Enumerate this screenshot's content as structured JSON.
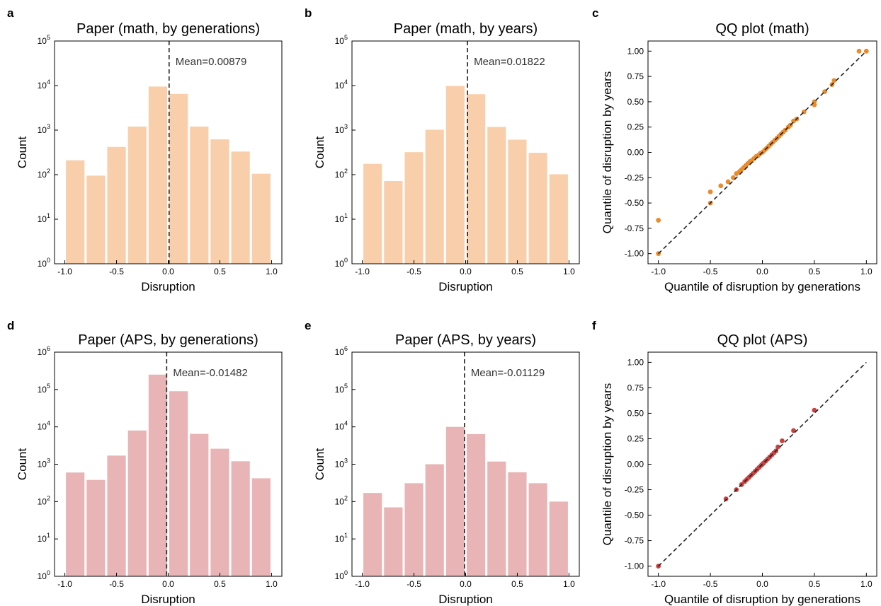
{
  "colors": {
    "hist_math": "#f8cfaa",
    "hist_aps": "#e8b4b5",
    "qq_math": "#ea8b2c",
    "qq_aps": "#c9403f",
    "mean_line": "#222222",
    "reference_line": "#222222"
  },
  "chart_data": [
    {
      "panel": "a",
      "type": "bar",
      "title": "Paper (math, by generations)",
      "xlabel": "Disruption",
      "ylabel": "Count",
      "yscale": "log",
      "xlim": [
        -1.1,
        1.1
      ],
      "ylim": [
        1,
        100000
      ],
      "xticks": [
        "-1.0",
        "-0.5",
        "0.0",
        "0.5",
        "1.0"
      ],
      "xtick_values": [
        -1.0,
        -0.5,
        0.0,
        0.5,
        1.0
      ],
      "ytick_exponents": [
        0,
        1,
        2,
        3,
        4,
        5
      ],
      "bin_edges": [
        -1.0,
        -0.8,
        -0.6,
        -0.4,
        -0.2,
        0.0,
        0.2,
        0.4,
        0.6,
        0.8,
        1.0
      ],
      "values": [
        210,
        95,
        420,
        1200,
        9500,
        6500,
        1200,
        620,
        330,
        105
      ],
      "mean": 0.00879,
      "mean_label": "Mean=0.00879",
      "grid": false
    },
    {
      "panel": "b",
      "type": "bar",
      "title": "Paper (math, by years)",
      "xlabel": "Disruption",
      "ylabel": "Count",
      "yscale": "log",
      "xlim": [
        -1.1,
        1.1
      ],
      "ylim": [
        1,
        100000
      ],
      "xticks": [
        "-1.0",
        "-0.5",
        "0.0",
        "0.5",
        "1.0"
      ],
      "xtick_values": [
        -1.0,
        -0.5,
        0.0,
        0.5,
        1.0
      ],
      "ytick_exponents": [
        0,
        1,
        2,
        3,
        4,
        5
      ],
      "bin_edges": [
        -1.0,
        -0.8,
        -0.6,
        -0.4,
        -0.2,
        0.0,
        0.2,
        0.4,
        0.6,
        0.8,
        1.0
      ],
      "values": [
        175,
        72,
        320,
        1020,
        9800,
        6400,
        1180,
        610,
        310,
        102
      ],
      "mean": 0.01822,
      "mean_label": "Mean=0.01822",
      "grid": false
    },
    {
      "panel": "c",
      "type": "scatter",
      "title": "QQ plot (math)",
      "xlabel": "Quantile of disruption by generations",
      "ylabel": "Quantile of disruption by years",
      "xlim": [
        -1.1,
        1.1
      ],
      "ylim": [
        -1.1,
        1.1
      ],
      "xticks": [
        "-1.0",
        "-0.5",
        "0.0",
        "0.5",
        "1.0"
      ],
      "xtick_values": [
        -1.0,
        -0.5,
        0.0,
        0.5,
        1.0
      ],
      "yticks": [
        "-1.00",
        "-0.75",
        "-0.50",
        "-0.25",
        "0.00",
        "0.25",
        "0.50",
        "0.75",
        "1.00"
      ],
      "ytick_values": [
        -1.0,
        -0.75,
        -0.5,
        -0.25,
        0.0,
        0.25,
        0.5,
        0.75,
        1.0
      ],
      "reference_line": [
        [
          -1.0,
          -1.0
        ],
        [
          1.0,
          1.0
        ]
      ],
      "points": [
        [
          -1.0,
          -1.0
        ],
        [
          -1.0,
          -0.67
        ],
        [
          -0.5,
          -0.5
        ],
        [
          -0.5,
          -0.39
        ],
        [
          -0.4,
          -0.33
        ],
        [
          -0.33,
          -0.29
        ],
        [
          -0.28,
          -0.25
        ],
        [
          -0.25,
          -0.21
        ],
        [
          -0.22,
          -0.19
        ],
        [
          -0.2,
          -0.17
        ],
        [
          -0.18,
          -0.15
        ],
        [
          -0.16,
          -0.13
        ],
        [
          -0.14,
          -0.11
        ],
        [
          -0.12,
          -0.09
        ],
        [
          -0.1,
          -0.08
        ],
        [
          -0.08,
          -0.06
        ],
        [
          -0.06,
          -0.04
        ],
        [
          -0.04,
          -0.03
        ],
        [
          -0.02,
          -0.01
        ],
        [
          0.0,
          0.0
        ],
        [
          0.02,
          0.02
        ],
        [
          0.04,
          0.04
        ],
        [
          0.06,
          0.06
        ],
        [
          0.08,
          0.08
        ],
        [
          0.1,
          0.1
        ],
        [
          0.12,
          0.12
        ],
        [
          0.14,
          0.14
        ],
        [
          0.16,
          0.16
        ],
        [
          0.18,
          0.18
        ],
        [
          0.2,
          0.2
        ],
        [
          0.22,
          0.22
        ],
        [
          0.25,
          0.25
        ],
        [
          0.27,
          0.27
        ],
        [
          0.3,
          0.31
        ],
        [
          0.33,
          0.33
        ],
        [
          0.4,
          0.4
        ],
        [
          0.5,
          0.47
        ],
        [
          0.5,
          0.5
        ],
        [
          0.6,
          0.6
        ],
        [
          0.67,
          0.67
        ],
        [
          0.69,
          0.71
        ],
        [
          0.93,
          1.0
        ],
        [
          1.0,
          1.0
        ]
      ],
      "grid": false
    },
    {
      "panel": "d",
      "type": "bar",
      "title": "Paper (APS, by generations)",
      "xlabel": "Disruption",
      "ylabel": "Count",
      "yscale": "log",
      "xlim": [
        -1.1,
        1.1
      ],
      "ylim": [
        1,
        1000000
      ],
      "xticks": [
        "-1.0",
        "-0.5",
        "0.0",
        "0.5",
        "1.0"
      ],
      "xtick_values": [
        -1.0,
        -0.5,
        0.0,
        0.5,
        1.0
      ],
      "ytick_exponents": [
        0,
        1,
        2,
        3,
        4,
        5,
        6
      ],
      "bin_edges": [
        -1.0,
        -0.8,
        -0.6,
        -0.4,
        -0.2,
        0.0,
        0.2,
        0.4,
        0.6,
        0.8,
        1.0
      ],
      "values": [
        600,
        380,
        1700,
        8000,
        250000,
        90000,
        6500,
        2600,
        1200,
        420
      ],
      "mean": -0.01482,
      "mean_label": "Mean=-0.01482",
      "grid": false
    },
    {
      "panel": "e",
      "type": "bar",
      "title": "Paper (APS, by years)",
      "xlabel": "Disruption",
      "ylabel": "Count",
      "yscale": "log",
      "xlim": [
        -1.1,
        1.1
      ],
      "ylim": [
        1,
        1000000
      ],
      "xticks": [
        "-1.0",
        "-0.5",
        "0.0",
        "0.5",
        "1.0"
      ],
      "xtick_values": [
        -1.0,
        -0.5,
        0.0,
        0.5,
        1.0
      ],
      "ytick_exponents": [
        0,
        1,
        2,
        3,
        4,
        5,
        6
      ],
      "bin_edges": [
        -1.0,
        -0.8,
        -0.6,
        -0.4,
        -0.2,
        0.0,
        0.2,
        0.4,
        0.6,
        0.8,
        1.0
      ],
      "values": [
        170,
        70,
        310,
        1000,
        10000,
        6400,
        1180,
        610,
        310,
        100
      ],
      "mean": -0.01129,
      "mean_label": "Mean=-0.01129",
      "grid": false
    },
    {
      "panel": "f",
      "type": "scatter",
      "title": "QQ plot (APS)",
      "xlabel": "Quantile of disruption by generations",
      "ylabel": "Quantile of disruption by years",
      "xlim": [
        -1.1,
        1.1
      ],
      "ylim": [
        -1.1,
        1.1
      ],
      "xticks": [
        "-1.0",
        "-0.5",
        "0.0",
        "0.5",
        "1.0"
      ],
      "xtick_values": [
        -1.0,
        -0.5,
        0.0,
        0.5,
        1.0
      ],
      "yticks": [
        "-1.00",
        "-0.75",
        "-0.50",
        "-0.25",
        "0.00",
        "0.25",
        "0.50",
        "0.75",
        "1.00"
      ],
      "ytick_values": [
        -1.0,
        -0.75,
        -0.5,
        -0.25,
        0.0,
        0.25,
        0.5,
        0.75,
        1.0
      ],
      "reference_line": [
        [
          -1.0,
          -1.0
        ],
        [
          1.0,
          1.0
        ]
      ],
      "points": [
        [
          -1.0,
          -1.0
        ],
        [
          -0.35,
          -0.34
        ],
        [
          -0.25,
          -0.25
        ],
        [
          -0.2,
          -0.2
        ],
        [
          -0.17,
          -0.17
        ],
        [
          -0.15,
          -0.15
        ],
        [
          -0.13,
          -0.13
        ],
        [
          -0.11,
          -0.11
        ],
        [
          -0.09,
          -0.09
        ],
        [
          -0.07,
          -0.07
        ],
        [
          -0.05,
          -0.05
        ],
        [
          -0.03,
          -0.03
        ],
        [
          -0.01,
          -0.01
        ],
        [
          0.0,
          0.0
        ],
        [
          0.01,
          0.01
        ],
        [
          0.03,
          0.03
        ],
        [
          0.05,
          0.05
        ],
        [
          0.07,
          0.07
        ],
        [
          0.09,
          0.09
        ],
        [
          0.11,
          0.11
        ],
        [
          0.13,
          0.13
        ],
        [
          0.15,
          0.17
        ],
        [
          0.19,
          0.23
        ],
        [
          0.3,
          0.33
        ],
        [
          0.5,
          0.53
        ]
      ],
      "grid": false
    }
  ]
}
